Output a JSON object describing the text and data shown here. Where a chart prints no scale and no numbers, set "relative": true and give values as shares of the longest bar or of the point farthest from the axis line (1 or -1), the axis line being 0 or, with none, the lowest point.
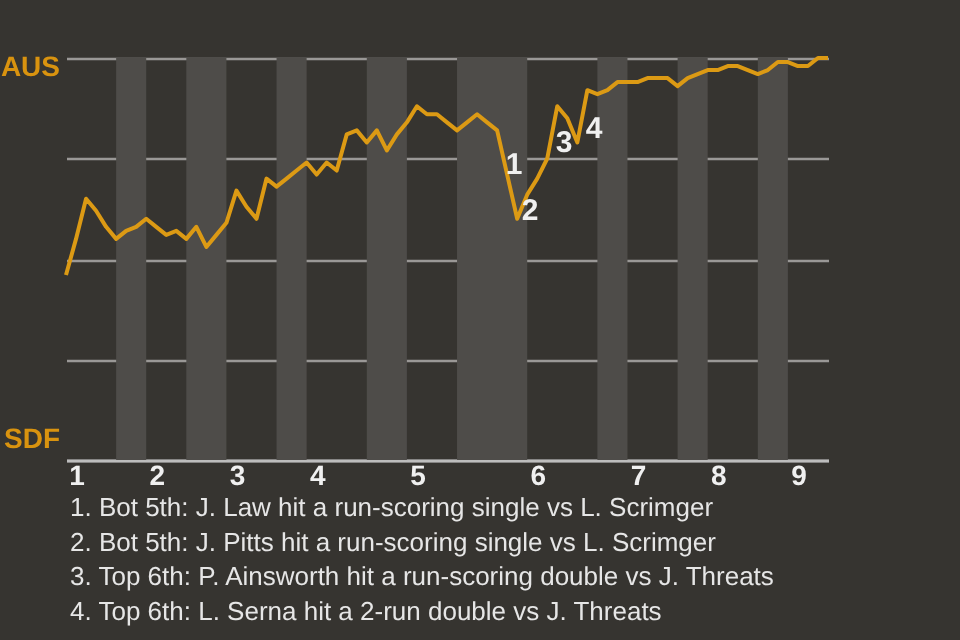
{
  "chart_data": {
    "type": "line",
    "relative": true,
    "categories": [
      null,
      "1",
      null,
      null,
      null,
      null,
      null,
      null,
      null,
      "2",
      null,
      null,
      null,
      null,
      null,
      null,
      null,
      "3",
      null,
      null,
      null,
      null,
      null,
      null,
      null,
      "4",
      null,
      null,
      null,
      null,
      null,
      null,
      null,
      null,
      null,
      "5",
      null,
      null,
      null,
      null,
      null,
      null,
      null,
      null,
      null,
      null,
      null,
      "6",
      null,
      null,
      null,
      null,
      null,
      null,
      null,
      null,
      null,
      "7",
      null,
      null,
      null,
      null,
      null,
      null,
      null,
      "8",
      null,
      null,
      null,
      null,
      null,
      null,
      null,
      "9",
      null,
      null,
      null
    ],
    "series": [
      {
        "color": "#dc9a14",
        "values": [
          0.46,
          0.55,
          0.65,
          0.62,
          0.58,
          0.55,
          0.57,
          0.58,
          0.6,
          0.58,
          0.56,
          0.57,
          0.55,
          0.58,
          0.53,
          0.56,
          0.59,
          0.67,
          0.63,
          0.6,
          0.7,
          0.68,
          0.7,
          0.72,
          0.74,
          0.71,
          0.74,
          0.72,
          0.81,
          0.82,
          0.79,
          0.82,
          0.77,
          0.81,
          0.84,
          0.88,
          0.86,
          0.86,
          0.84,
          0.82,
          0.84,
          0.86,
          0.84,
          0.82,
          0.71,
          0.6,
          0.66,
          0.7,
          0.75,
          0.88,
          0.85,
          0.79,
          0.92,
          0.91,
          0.92,
          0.94,
          0.94,
          0.94,
          0.95,
          0.95,
          0.95,
          0.93,
          0.95,
          0.96,
          0.97,
          0.97,
          0.98,
          0.98,
          0.97,
          0.96,
          0.97,
          0.99,
          0.99,
          0.98,
          0.98,
          1,
          1
        ]
      }
    ],
    "grid": "y",
    "annotations": [
      "AUS",
      "SDF",
      "1",
      "2",
      "3",
      "4",
      "1. Bot 5th: J. Law hit a run-scoring single vs L. Scrimger",
      "2. Bot 5th: J. Pitts hit a run-scoring single vs L. Scrimger",
      "3. Top 6th: P. Ainsworth hit a run-scoring double vs J. Threats",
      "4. Top 6th: L. Serna hit a 2-run double vs J. Threats"
    ]
  }
}
